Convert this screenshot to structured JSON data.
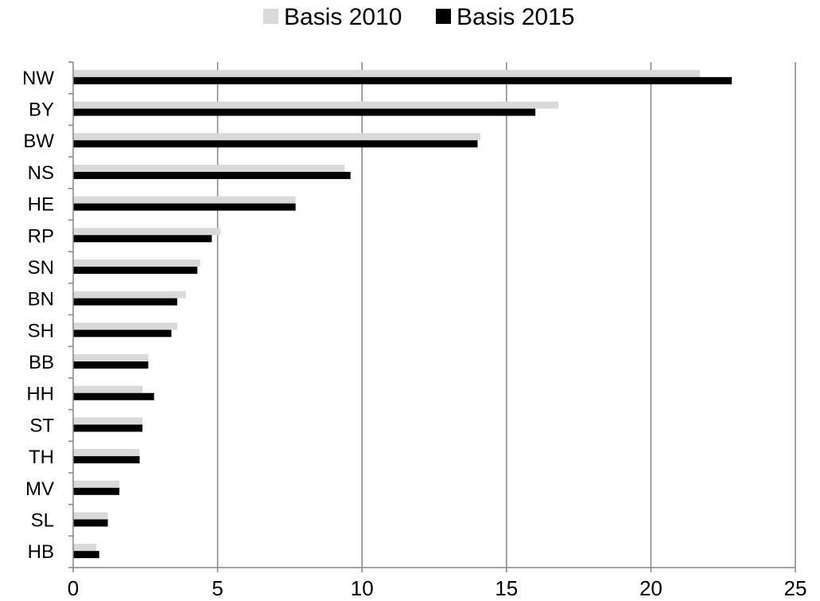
{
  "chart_data": {
    "type": "bar",
    "orientation": "horizontal",
    "categories": [
      "NW",
      "BY",
      "BW",
      "NS",
      "HE",
      "RP",
      "SN",
      "BN",
      "SH",
      "BB",
      "HH",
      "ST",
      "TH",
      "MV",
      "SL",
      "HB"
    ],
    "series": [
      {
        "name": "Basis 2010",
        "color": "#d9d9d9",
        "values": [
          21.7,
          16.8,
          14.1,
          9.4,
          7.7,
          5.1,
          4.4,
          3.9,
          3.6,
          2.6,
          2.4,
          2.4,
          2.3,
          1.6,
          1.2,
          0.8
        ]
      },
      {
        "name": "Basis 2015",
        "color": "#000000",
        "values": [
          22.8,
          16.0,
          14.0,
          9.6,
          7.7,
          4.8,
          4.3,
          3.6,
          3.4,
          2.6,
          2.8,
          2.4,
          2.3,
          1.6,
          1.2,
          0.9
        ]
      }
    ],
    "xlim": [
      0,
      25
    ],
    "xticks": [
      0,
      5,
      10,
      15,
      20,
      25
    ],
    "grid": "vertical",
    "legend": "top-center",
    "title": "",
    "xlabel": "",
    "ylabel": ""
  }
}
